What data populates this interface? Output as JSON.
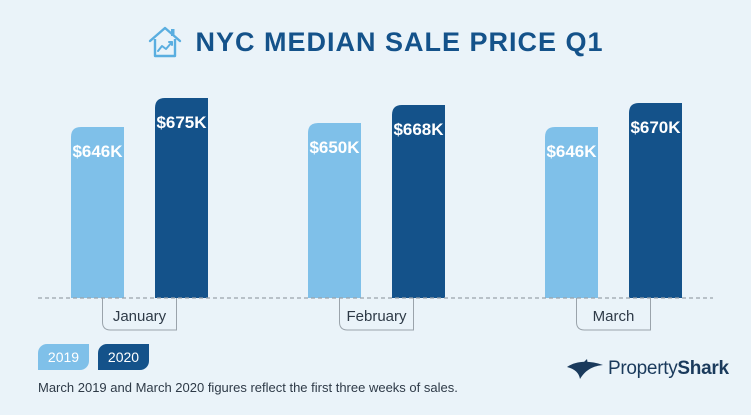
{
  "title": "NYC MEDIAN SALE PRICE Q1",
  "colors": {
    "background": "#eaf3f9",
    "title": "#14528a",
    "series_2019": "#7fc0e9",
    "series_2020": "#14528a",
    "baseline": "#9aa3ab"
  },
  "chart_data": {
    "type": "bar",
    "title": "NYC MEDIAN SALE PRICE Q1",
    "categories": [
      "January",
      "February",
      "March"
    ],
    "series": [
      {
        "name": "2019",
        "values": [
          646,
          650,
          646
        ],
        "labels": [
          "$646K",
          "$650K",
          "$646K"
        ]
      },
      {
        "name": "2020",
        "values": [
          675,
          668,
          670
        ],
        "labels": [
          "$675K",
          "$668K",
          "$670K"
        ]
      }
    ],
    "unit": "$K",
    "legend_position": "bottom-left",
    "grid": false
  },
  "legend": {
    "items": [
      "2019",
      "2020"
    ]
  },
  "footnote": "March 2019 and March 2020 figures reflect the first three weeks of sales.",
  "logo": {
    "part1": "Property",
    "part2": "Shark"
  }
}
